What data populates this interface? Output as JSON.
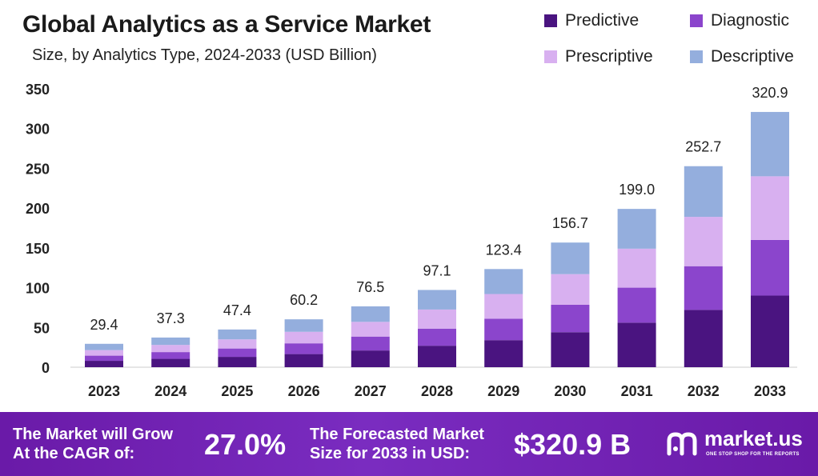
{
  "header": {
    "title": "Global Analytics as a Service Market",
    "subtitle": "Size, by Analytics Type, 2024-2033 (USD Billion)"
  },
  "legend": [
    {
      "label": "Predictive",
      "color": "#4a1480"
    },
    {
      "label": "Diagnostic",
      "color": "#8b45cc"
    },
    {
      "label": "Prescriptive",
      "color": "#d8b0f0"
    },
    {
      "label": "Descriptive",
      "color": "#94aedd"
    }
  ],
  "chart_data": {
    "type": "bar",
    "stacked": true,
    "categories": [
      "2023",
      "2024",
      "2025",
      "2026",
      "2027",
      "2028",
      "2029",
      "2030",
      "2031",
      "2032",
      "2033"
    ],
    "totals": [
      "29.4",
      "37.3",
      "47.4",
      "60.2",
      "76.5",
      "97.1",
      "123.4",
      "156.7",
      "199.0",
      "252.7",
      "320.9"
    ],
    "series": [
      {
        "name": "Predictive",
        "color": "#4a1480",
        "values": [
          8,
          10.5,
          13,
          16.5,
          21,
          27,
          34,
          44,
          56,
          72,
          90
        ]
      },
      {
        "name": "Diagnostic",
        "color": "#8b45cc",
        "values": [
          6.5,
          8.5,
          10.5,
          13.5,
          17.5,
          21.5,
          27,
          34.5,
          44,
          55,
          70
        ]
      },
      {
        "name": "Prescriptive",
        "color": "#d8b0f0",
        "values": [
          7,
          9,
          11.5,
          14.5,
          18.5,
          24,
          31,
          38.5,
          49,
          62,
          80
        ]
      },
      {
        "name": "Descriptive",
        "color": "#94aedd",
        "values": [
          7.9,
          9.3,
          12.4,
          15.7,
          19.5,
          24.6,
          31.4,
          39.7,
          50,
          63.7,
          80.9
        ]
      }
    ],
    "yticks": [
      0,
      50,
      100,
      150,
      200,
      250,
      300,
      350
    ],
    "ylim": [
      0,
      350
    ]
  },
  "footer": {
    "cagr_label_line1": "The Market will Grow",
    "cagr_label_line2": "At the CAGR of:",
    "cagr_value": "27.0%",
    "forecast_label_line1": "The Forecasted Market",
    "forecast_label_line2": "Size for 2033 in USD:",
    "forecast_value": "$320.9 B",
    "brand_name": "market.us",
    "brand_tagline": "ONE STOP SHOP FOR THE REPORTS"
  }
}
